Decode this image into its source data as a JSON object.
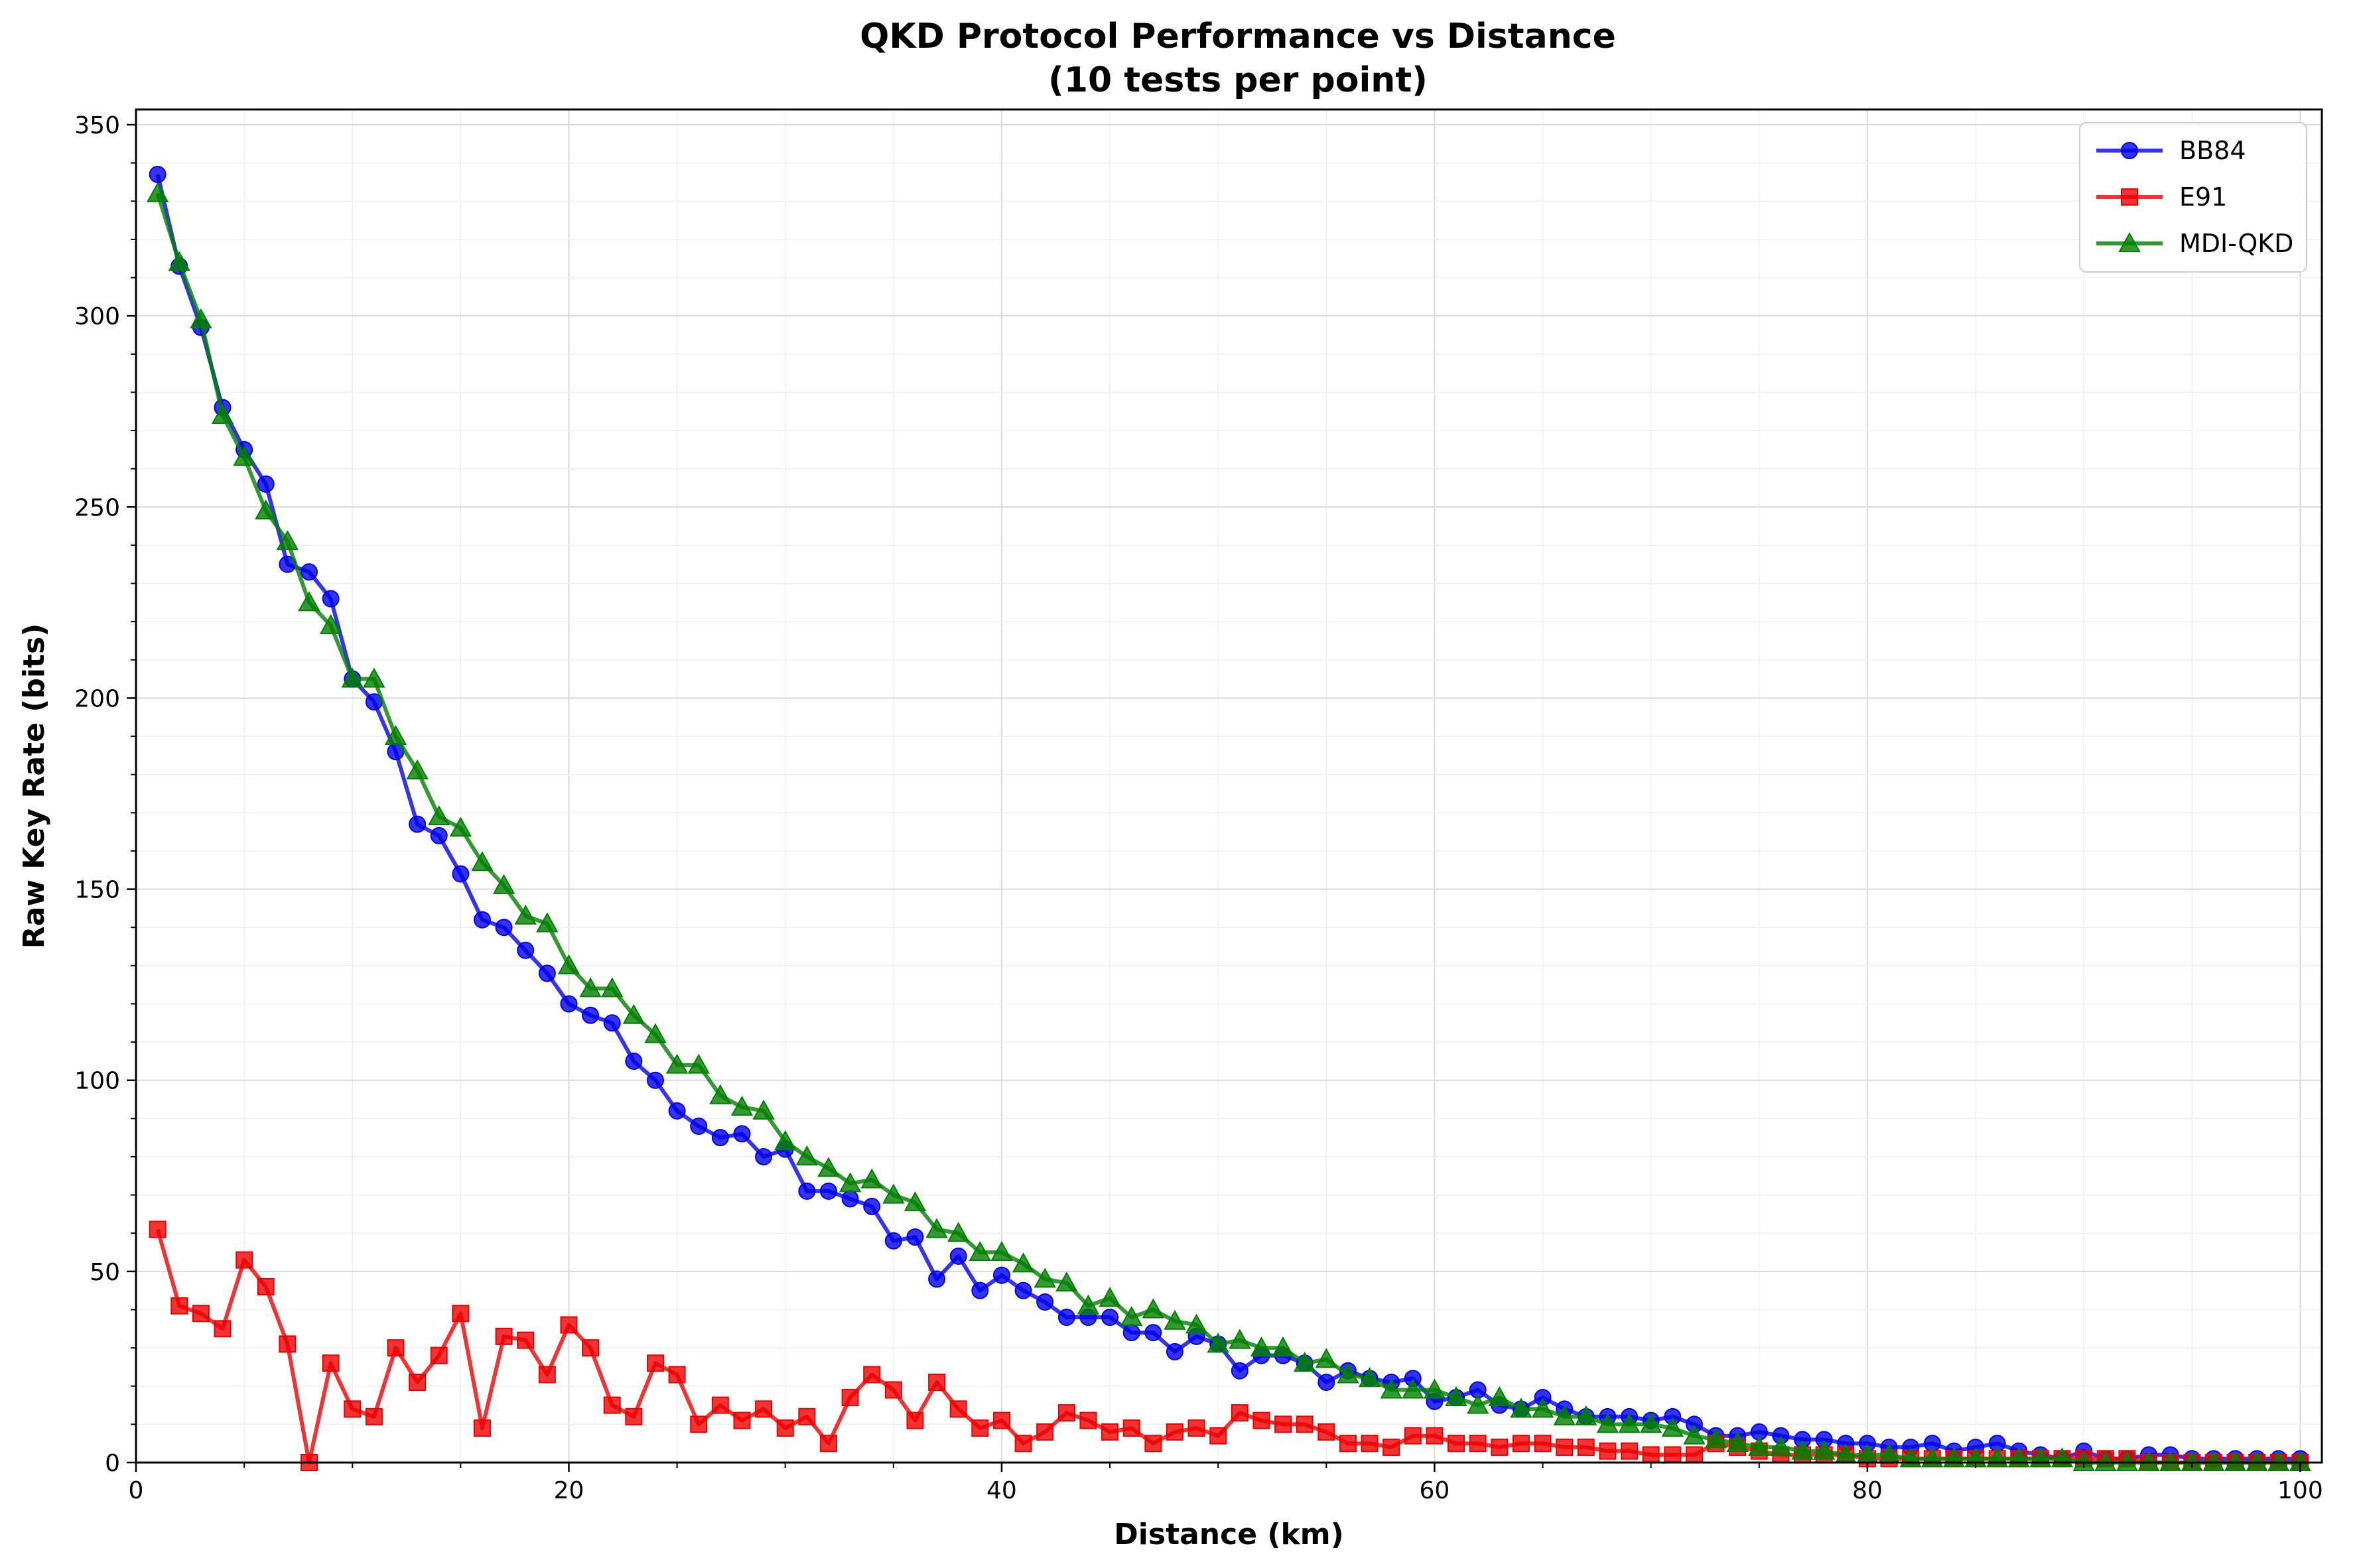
{
  "chart_data": {
    "type": "line",
    "title": "QKD Protocol Performance vs Distance",
    "subtitle": "(10 tests per point)",
    "xlabel": "Distance (km)",
    "ylabel": "Raw Key Rate (bits)",
    "xlim": [
      0,
      101
    ],
    "ylim": [
      0,
      354
    ],
    "xticks": [
      0,
      20,
      40,
      60,
      80,
      100
    ],
    "yticks": [
      0,
      50,
      100,
      150,
      200,
      250,
      300,
      350
    ],
    "grid": true,
    "legend_position": "top-right",
    "x": [
      1,
      2,
      3,
      4,
      5,
      6,
      7,
      8,
      9,
      10,
      11,
      12,
      13,
      14,
      15,
      16,
      17,
      18,
      19,
      20,
      21,
      22,
      23,
      24,
      25,
      26,
      27,
      28,
      29,
      30,
      31,
      32,
      33,
      34,
      35,
      36,
      37,
      38,
      39,
      40,
      41,
      42,
      43,
      44,
      45,
      46,
      47,
      48,
      49,
      50,
      51,
      52,
      53,
      54,
      55,
      56,
      57,
      58,
      59,
      60,
      61,
      62,
      63,
      64,
      65,
      66,
      67,
      68,
      69,
      70,
      71,
      72,
      73,
      74,
      75,
      76,
      77,
      78,
      79,
      80,
      81,
      82,
      83,
      84,
      85,
      86,
      87,
      88,
      89,
      90,
      91,
      92,
      93,
      94,
      95,
      96,
      97,
      98,
      99,
      100
    ],
    "series": [
      {
        "name": "BB84",
        "color": "#0000ee",
        "marker": "circle",
        "values": [
          337,
          313,
          297,
          276,
          265,
          256,
          235,
          233,
          226,
          205,
          199,
          186,
          167,
          164,
          154,
          142,
          140,
          134,
          128,
          120,
          117,
          115,
          105,
          100,
          92,
          88,
          85,
          86,
          80,
          82,
          71,
          71,
          69,
          67,
          58,
          59,
          48,
          54,
          45,
          49,
          45,
          42,
          38,
          38,
          38,
          34,
          34,
          29,
          33,
          31,
          24,
          28,
          28,
          26,
          21,
          24,
          22,
          21,
          22,
          16,
          17,
          19,
          15,
          14,
          17,
          14,
          12,
          12,
          12,
          11,
          12,
          10,
          7,
          7,
          8,
          7,
          6,
          6,
          5,
          5,
          4,
          4,
          5,
          3,
          4,
          5,
          3,
          2,
          1,
          3,
          1,
          1,
          2,
          2,
          1,
          1,
          1,
          1,
          1,
          1
        ]
      },
      {
        "name": "E91",
        "color": "#ee0000",
        "marker": "square",
        "values": [
          61,
          41,
          39,
          35,
          53,
          46,
          31,
          0,
          26,
          14,
          12,
          30,
          21,
          28,
          39,
          9,
          33,
          32,
          23,
          36,
          30,
          15,
          12,
          26,
          23,
          10,
          15,
          11,
          14,
          9,
          12,
          5,
          17,
          23,
          19,
          11,
          21,
          14,
          9,
          11,
          5,
          8,
          13,
          11,
          8,
          9,
          5,
          8,
          9,
          7,
          13,
          11,
          10,
          10,
          8,
          5,
          5,
          4,
          7,
          7,
          5,
          5,
          4,
          5,
          5,
          4,
          4,
          3,
          3,
          2,
          2,
          2,
          5,
          4,
          3,
          2,
          2,
          2,
          2,
          1,
          1,
          1,
          1,
          1,
          1,
          1,
          1,
          1,
          1,
          1,
          1,
          1,
          0,
          0,
          0,
          0,
          0,
          0,
          0,
          0
        ]
      },
      {
        "name": "MDI-QKD",
        "color": "#008000",
        "marker": "triangle",
        "values": [
          332,
          314,
          299,
          274,
          263,
          249,
          241,
          225,
          219,
          205,
          205,
          190,
          181,
          169,
          166,
          157,
          151,
          143,
          141,
          130,
          124,
          124,
          117,
          112,
          104,
          104,
          96,
          93,
          92,
          84,
          80,
          77,
          73,
          74,
          70,
          68,
          61,
          60,
          55,
          55,
          52,
          48,
          47,
          41,
          43,
          38,
          40,
          37,
          36,
          31,
          32,
          30,
          30,
          26,
          27,
          23,
          22,
          19,
          19,
          19,
          17,
          15,
          17,
          14,
          14,
          12,
          12,
          10,
          10,
          10,
          9,
          7,
          6,
          5,
          4,
          4,
          3,
          3,
          2,
          2,
          2,
          1,
          1,
          1,
          1,
          1,
          1,
          1,
          1,
          0,
          0,
          0,
          0,
          0,
          0,
          0,
          0,
          0,
          0,
          0
        ]
      }
    ]
  }
}
